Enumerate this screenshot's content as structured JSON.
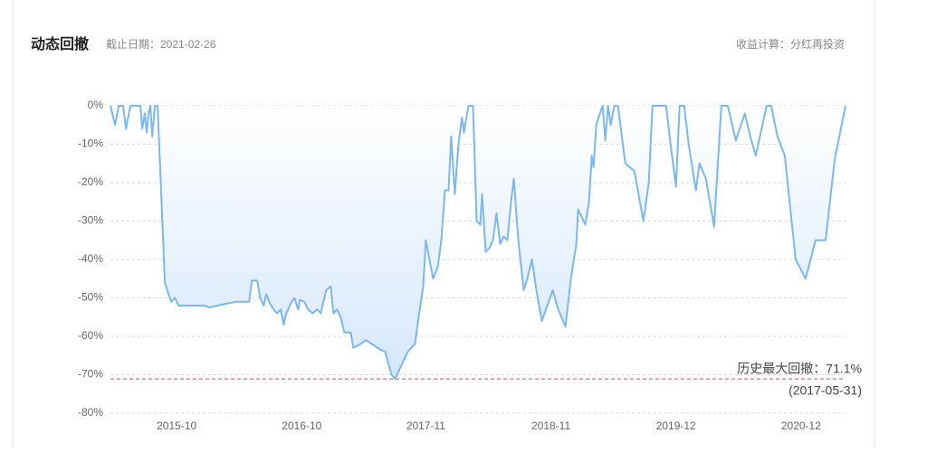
{
  "chart_data": {
    "type": "area",
    "title": "动态回撤",
    "subtitle": "截止日期：2021-02-26",
    "calc_note": "收益计算：分红再投资",
    "annotation": "历史最大回撤：71.1%",
    "annotation_date": "(2017-05-31)",
    "max_drawdown_line": -71.1,
    "max_drawdown_color": "#e0474c",
    "grid": true,
    "xlim": [
      2015.2,
      2021.283
    ],
    "xticks": [
      {
        "value": 2015.748,
        "label": "2015-10"
      },
      {
        "value": 2016.783,
        "label": "2016-10"
      },
      {
        "value": 2017.81,
        "label": "2017-11"
      },
      {
        "value": 2018.845,
        "label": "2018-11"
      },
      {
        "value": 2019.88,
        "label": "2019-12"
      },
      {
        "value": 2020.915,
        "label": "2020-12"
      }
    ],
    "ylim": [
      -80,
      0
    ],
    "yticks": [
      {
        "value": 0,
        "label": "0%"
      },
      {
        "value": -10,
        "label": "-10%"
      },
      {
        "value": -20,
        "label": "-20%"
      },
      {
        "value": -30,
        "label": "-30%"
      },
      {
        "value": -40,
        "label": "-40%"
      },
      {
        "value": -50,
        "label": "-50%"
      },
      {
        "value": -60,
        "label": "-60%"
      },
      {
        "value": -70,
        "label": "-70%"
      },
      {
        "value": -80,
        "label": "-80%"
      }
    ],
    "series": [
      {
        "color": "#7ab8ef",
        "fill_color": "#cfe3fb",
        "x": [
          2015.2,
          2015.238,
          2015.268,
          2015.305,
          2015.328,
          2015.365,
          2015.448,
          2015.463,
          2015.485,
          2015.5,
          2015.515,
          2015.53,
          2015.545,
          2015.568,
          2015.59,
          2015.65,
          2015.68,
          2015.703,
          2015.733,
          2015.763,
          2015.86,
          2015.973,
          2016.025,
          2016.085,
          2016.16,
          2016.235,
          2016.348,
          2016.37,
          2016.415,
          2016.438,
          2016.468,
          2016.49,
          2016.513,
          2016.55,
          2016.58,
          2016.61,
          2016.633,
          2016.655,
          2016.7,
          2016.723,
          2016.753,
          2016.768,
          2016.805,
          2016.835,
          2016.873,
          2016.91,
          2016.94,
          2016.985,
          2017.023,
          2017.045,
          2017.075,
          2017.105,
          2017.135,
          2017.188,
          2017.21,
          2017.27,
          2017.315,
          2017.435,
          2017.473,
          2017.525,
          2017.555,
          2017.615,
          2017.66,
          2017.72,
          2017.75,
          2017.788,
          2017.81,
          2017.87,
          2017.908,
          2017.938,
          2017.968,
          2017.998,
          2018.02,
          2018.05,
          2018.08,
          2018.11,
          2018.125,
          2018.14,
          2018.163,
          2018.2,
          2018.23,
          2018.26,
          2018.275,
          2018.305,
          2018.335,
          2018.365,
          2018.395,
          2018.425,
          2018.455,
          2018.485,
          2018.515,
          2018.538,
          2018.575,
          2018.62,
          2018.65,
          2018.688,
          2018.725,
          2018.77,
          2018.815,
          2018.86,
          2018.905,
          2018.965,
          2019.01,
          2019.055,
          2019.07,
          2019.13,
          2019.16,
          2019.183,
          2019.198,
          2019.22,
          2019.25,
          2019.273,
          2019.295,
          2019.318,
          2019.34,
          2019.37,
          2019.4,
          2019.46,
          2019.535,
          2019.61,
          2019.655,
          2019.685,
          2019.798,
          2019.835,
          2019.88,
          2019.91,
          2019.948,
          2019.985,
          2020.045,
          2020.075,
          2020.128,
          2020.195,
          2020.255,
          2020.308,
          2020.375,
          2020.45,
          2020.495,
          2020.54,
          2020.63,
          2020.668,
          2020.72,
          2020.78,
          2020.87,
          2020.953,
          2021.035,
          2021.118,
          2021.193,
          2021.283
        ],
        "values": [
          0,
          -5,
          0,
          0,
          -6,
          0,
          0,
          -6,
          -2,
          -7,
          -2,
          0,
          -8,
          0,
          0,
          -46,
          -49,
          -51,
          -50,
          -52,
          -52,
          -52,
          -52.5,
          -52,
          -51.5,
          -51,
          -51,
          -45.5,
          -45.5,
          -50,
          -52,
          -49,
          -51,
          -53,
          -54,
          -53,
          -57,
          -54,
          -51,
          -50,
          -53,
          -50.5,
          -51,
          -53,
          -54,
          -53,
          -54,
          -48,
          -47,
          -54,
          -53,
          -55,
          -59,
          -59,
          -63,
          -62,
          -61,
          -63.5,
          -64,
          -70,
          -71.1,
          -67,
          -64,
          -62,
          -55,
          -47,
          -35,
          -45,
          -42,
          -35,
          -22,
          -22,
          -8,
          -23,
          -10,
          -3,
          -7,
          -4,
          0,
          0,
          -30,
          -31,
          -23,
          -38,
          -37,
          -35,
          -28,
          -36,
          -34,
          -35,
          -25,
          -19,
          -35,
          -48,
          -45,
          -40,
          -48,
          -56,
          -52,
          -48,
          -53,
          -57.5,
          -45,
          -36,
          -27,
          -31,
          -25,
          -13,
          -16,
          -5,
          -2,
          0,
          -9,
          0,
          -5,
          0,
          0,
          -15,
          -17,
          -30,
          -20,
          0,
          0,
          -10,
          -21,
          0,
          0,
          -10,
          -22,
          -15,
          -19,
          -31.5,
          0,
          0,
          -9,
          -2,
          -8,
          -13,
          0,
          0,
          -8,
          -13,
          -40,
          -45,
          -35,
          -35,
          -14,
          0
        ]
      }
    ]
  }
}
